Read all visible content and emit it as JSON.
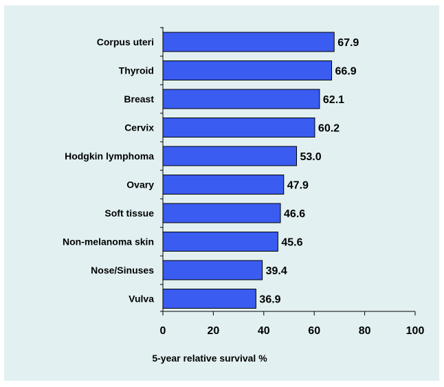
{
  "chart_data": {
    "type": "bar",
    "orientation": "horizontal",
    "categories": [
      "Corpus uteri",
      "Thyroid",
      "Breast",
      "Cervix",
      "Hodgkin lymphoma",
      "Ovary",
      "Soft tissue",
      "Non-melanoma skin",
      "Nose/Sinuses",
      "Vulva"
    ],
    "values": [
      67.9,
      66.9,
      62.1,
      60.2,
      53.0,
      47.9,
      46.6,
      45.6,
      39.4,
      36.9
    ],
    "value_labels": [
      "67.9",
      "66.9",
      "62.1",
      "60.2",
      "53.0",
      "47.9",
      "46.6",
      "45.6",
      "39.4",
      "36.9"
    ],
    "xlabel": "5-year relative survival %",
    "ylabel": "",
    "xlim": [
      0,
      100
    ],
    "ticks": [
      "0",
      "20",
      "40",
      "60",
      "80",
      "100"
    ],
    "grid": false,
    "bar_color": "#3a5cf0",
    "background_color": "#e2f0f1"
  }
}
